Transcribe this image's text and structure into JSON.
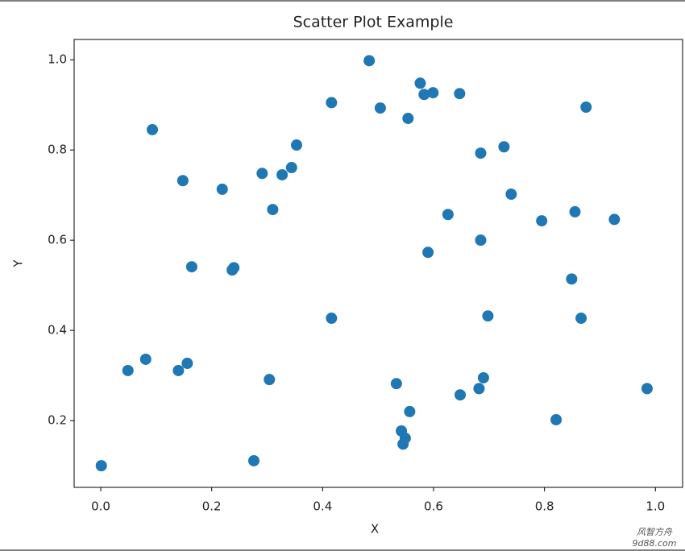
{
  "chart_data": {
    "type": "scatter",
    "title": "Scatter Plot Example",
    "x_label": "X",
    "y_label": "Y",
    "color": "#1f77b4",
    "xlim": [
      -0.048,
      1.049
    ],
    "ylim": [
      0.052,
      1.045
    ],
    "xticks": [
      {
        "value": 0,
        "label": "0.0"
      },
      {
        "value": 0.2,
        "label": "0.2"
      },
      {
        "value": 0.4,
        "label": "0.4"
      },
      {
        "value": 0.6,
        "label": "0.6"
      },
      {
        "value": 0.8,
        "label": "0.8"
      },
      {
        "value": 1,
        "label": "1.0"
      }
    ],
    "yticks": [
      {
        "value": 0.2,
        "label": "0.2"
      },
      {
        "value": 0.4,
        "label": "0.4"
      },
      {
        "value": 0.6,
        "label": "0.6"
      },
      {
        "value": 0.8,
        "label": "0.8"
      },
      {
        "value": 1,
        "label": "1.0"
      }
    ],
    "grid": false,
    "x": [
      0.001,
      0.049,
      0.081,
      0.093,
      0.14,
      0.148,
      0.156,
      0.164,
      0.219,
      0.237,
      0.24,
      0.276,
      0.291,
      0.304,
      0.31,
      0.327,
      0.344,
      0.353,
      0.416,
      0.416,
      0.484,
      0.504,
      0.533,
      0.542,
      0.545,
      0.549,
      0.554,
      0.557,
      0.576,
      0.583,
      0.59,
      0.599,
      0.626,
      0.647,
      0.648,
      0.682,
      0.685,
      0.685,
      0.69,
      0.698,
      0.727,
      0.74,
      0.795,
      0.821,
      0.849,
      0.855,
      0.866,
      0.875,
      0.926,
      0.985
    ],
    "values": [
      0.1,
      0.311,
      0.336,
      0.845,
      0.311,
      0.732,
      0.327,
      0.541,
      0.713,
      0.534,
      0.539,
      0.111,
      0.748,
      0.291,
      0.668,
      0.745,
      0.761,
      0.811,
      0.905,
      0.427,
      0.998,
      0.893,
      0.282,
      0.177,
      0.148,
      0.161,
      0.87,
      0.22,
      0.948,
      0.923,
      0.573,
      0.927,
      0.657,
      0.925,
      0.257,
      0.271,
      0.793,
      0.6,
      0.295,
      0.432,
      0.807,
      0.702,
      0.643,
      0.202,
      0.514,
      0.663,
      0.427,
      0.895,
      0.646,
      0.271
    ]
  },
  "watermark": {
    "name": "风智方舟",
    "site": "9d88.com"
  }
}
